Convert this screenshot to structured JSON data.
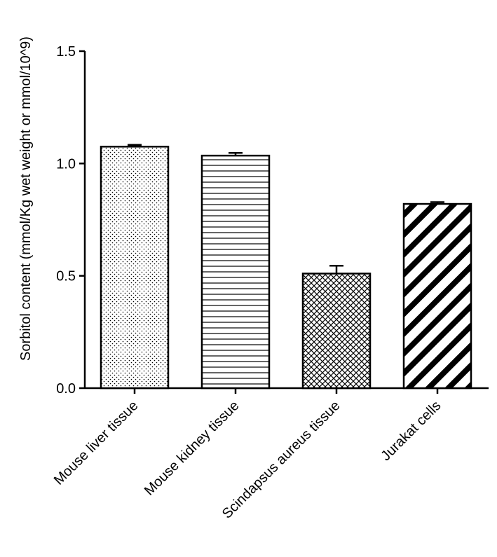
{
  "chart_data": {
    "type": "bar",
    "title": "",
    "xlabel": "",
    "ylabel": "Sorbitol content (mmol/Kg wet weight or mmol/10^9)",
    "ylim": [
      0,
      1.5
    ],
    "yticks": [
      "0.0",
      "0.5",
      "1.0",
      "1.5"
    ],
    "grid": false,
    "categories": [
      "Mouse liver tissue",
      "Mouse kidney tissue",
      "Scindapsus aureus tissue",
      "Jurakat cells"
    ],
    "values": [
      1.075,
      1.035,
      0.51,
      0.82
    ],
    "errors": [
      0.008,
      0.012,
      0.035,
      0.008
    ],
    "fills": [
      "dots",
      "horizontal-lines",
      "crosshatch",
      "diagonal-stripes"
    ],
    "colors": {
      "bar_stroke": "#000000",
      "bar_bg": "#ffffff",
      "axis": "#000000"
    }
  }
}
